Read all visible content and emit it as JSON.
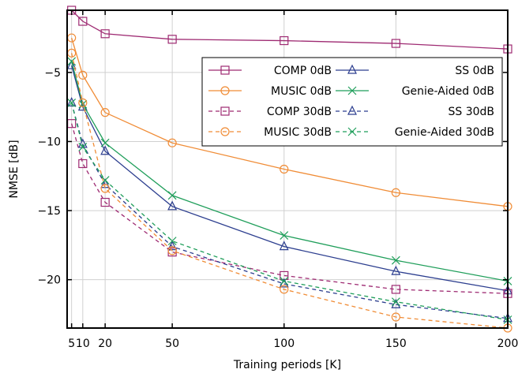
{
  "chart_data": {
    "type": "line",
    "title": "",
    "xlabel": "Training periods [K]",
    "ylabel": "NMSE [dB]",
    "xlim": [
      3,
      200
    ],
    "ylim": [
      -23.5,
      -0.5
    ],
    "xticks": [
      5,
      10,
      20,
      50,
      100,
      150,
      200
    ],
    "xtick_labels": [
      "5",
      "10",
      "20",
      "50",
      "100",
      "150",
      "200"
    ],
    "yticks": [
      -5,
      -10,
      -15,
      -20
    ],
    "ytick_labels": [
      "−5",
      "−10",
      "−15",
      "−20"
    ],
    "grid": true,
    "legend_position": "top-right",
    "x": [
      5,
      10,
      20,
      50,
      100,
      150,
      200
    ],
    "series": [
      {
        "name": "COMP 0dB",
        "color": "#9e2a72",
        "dash": "solid",
        "marker": "square",
        "values": [
          -0.5,
          -1.3,
          -2.2,
          -2.6,
          -2.7,
          -2.9,
          -3.3
        ]
      },
      {
        "name": "SS 0dB",
        "color": "#2c3e8f",
        "dash": "solid",
        "marker": "triangle",
        "values": [
          -4.5,
          -7.5,
          -10.7,
          -14.7,
          -17.6,
          -19.4,
          -20.8
        ]
      },
      {
        "name": "MUSIC 0dB",
        "color": "#f08c36",
        "dash": "solid",
        "marker": "circle",
        "values": [
          -2.5,
          -5.2,
          -7.9,
          -10.1,
          -12.0,
          -13.7,
          -14.7
        ]
      },
      {
        "name": "Genie-Aided 0dB",
        "color": "#1f9e5a",
        "dash": "solid",
        "marker": "x",
        "values": [
          -4.2,
          -7.3,
          -10.1,
          -13.9,
          -16.8,
          -18.6,
          -20.1
        ]
      },
      {
        "name": "COMP 30dB",
        "color": "#9e2a72",
        "dash": "dashed",
        "marker": "square",
        "values": [
          -8.7,
          -11.6,
          -14.4,
          -18.0,
          -19.7,
          -20.7,
          -21.0
        ]
      },
      {
        "name": "SS 30dB",
        "color": "#2c3e8f",
        "dash": "dashed",
        "marker": "triangle",
        "values": [
          -7.2,
          -10.2,
          -13.1,
          -17.6,
          -20.3,
          -21.8,
          -22.8
        ]
      },
      {
        "name": "MUSIC 30dB",
        "color": "#f08c36",
        "dash": "dashed",
        "marker": "circle",
        "values": [
          -3.6,
          -7.2,
          -13.4,
          -17.9,
          -20.7,
          -22.7,
          -23.5
        ]
      },
      {
        "name": "Genie-Aided 30dB",
        "color": "#1f9e5a",
        "dash": "dashed",
        "marker": "x",
        "values": [
          -7.2,
          -10.4,
          -12.8,
          -17.2,
          -20.1,
          -21.6,
          -22.9
        ]
      }
    ],
    "legend_order": [
      "COMP 0dB",
      "SS 0dB",
      "MUSIC 0dB",
      "Genie-Aided 0dB",
      "COMP 30dB",
      "SS 30dB",
      "MUSIC 30dB",
      "Genie-Aided 30dB"
    ]
  }
}
